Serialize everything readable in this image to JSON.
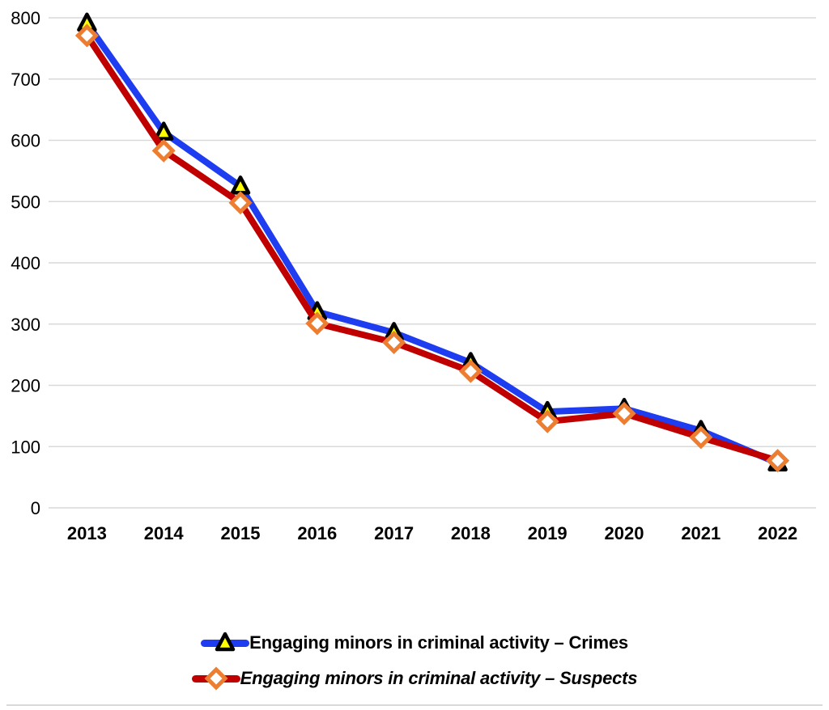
{
  "page": {
    "background_color": "#ffffff",
    "bottom_rule_color": "#d9d9d9"
  },
  "chart_data": {
    "type": "line",
    "title": "",
    "xlabel": "",
    "ylabel": "",
    "categories": [
      "2013",
      "2014",
      "2015",
      "2016",
      "2017",
      "2018",
      "2019",
      "2020",
      "2021",
      "2022"
    ],
    "series": [
      {
        "name": "Engaging minors in criminal activity – Crimes",
        "values": [
          791,
          613,
          525,
          320,
          286,
          237,
          157,
          162,
          126,
          73
        ],
        "line_color": "#1e3cf0",
        "marker": "triangle",
        "marker_fill": "#ffff00",
        "marker_stroke": "#000000",
        "legend_text_style": "bold"
      },
      {
        "name": "Engaging minors in criminal activity – Suspects",
        "values": [
          771,
          583,
          498,
          301,
          270,
          223,
          141,
          154,
          115,
          77
        ],
        "line_color": "#c00000",
        "marker": "diamond",
        "marker_fill": "#ffffff",
        "marker_stroke": "#ed7d31",
        "legend_text_style": "bold-italic"
      }
    ],
    "ylim": [
      0,
      800
    ],
    "yticks": [
      0,
      100,
      200,
      300,
      400,
      500,
      600,
      700,
      800
    ],
    "grid": "horizontal",
    "gridline_color": "#d9d9d9",
    "tick_label_color": "#000000",
    "legend_position": "bottom-center"
  }
}
